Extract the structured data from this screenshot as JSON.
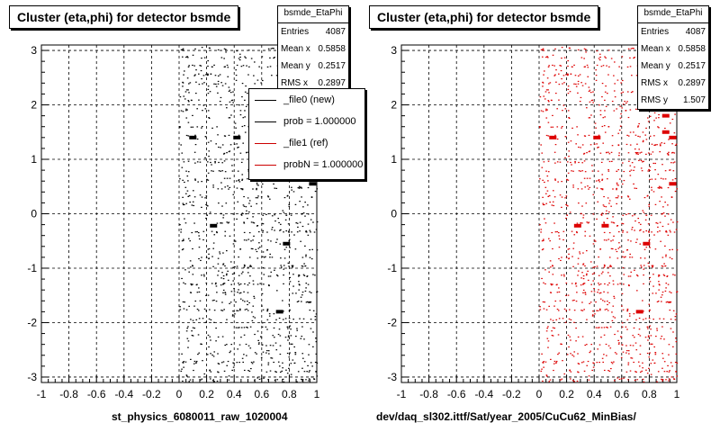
{
  "chart_data": [
    {
      "type": "scatter",
      "title": "Cluster (eta,phi) for detector bsmde",
      "xlabel": "st_physics_6080011_raw_1020004",
      "xlim": [
        -1,
        1
      ],
      "ylim": [
        -3.1,
        3.1
      ],
      "grid": true,
      "marker_color": "#000000",
      "xticks": [
        "-1",
        "-0.8",
        "-0.6",
        "-0.4",
        "-0.2",
        "0",
        "0.2",
        "0.4",
        "0.6",
        "0.8",
        "1"
      ],
      "yticks": [
        "3",
        "2",
        "1",
        "0",
        "-1",
        "-2",
        "-3"
      ],
      "stats": {
        "name": "bsmde_EtaPhi",
        "rows": [
          {
            "label": "Entries",
            "value": "4087"
          },
          {
            "label": "Mean x",
            "value": "0.5858"
          },
          {
            "label": "Mean y",
            "value": "0.2517"
          },
          {
            "label": "RMS x",
            "value": "0.2897"
          }
        ]
      },
      "legend": [
        {
          "label": "_file0 (new)",
          "color": "#000000"
        },
        {
          "label": "prob = 1.000000",
          "color": "#000000"
        },
        {
          "label": "_file1 (ref)",
          "color": "#cc0000"
        },
        {
          "label": "probN = 1.000000",
          "color": "#cc0000"
        }
      ],
      "hotspots": [
        {
          "x": 0.1,
          "y": 1.4
        },
        {
          "x": 0.42,
          "y": 1.4
        },
        {
          "x": 0.97,
          "y": 0.55
        },
        {
          "x": 0.25,
          "y": -0.22
        },
        {
          "x": 0.78,
          "y": -0.55
        },
        {
          "x": 0.73,
          "y": -1.8
        }
      ]
    },
    {
      "type": "scatter",
      "title": "Cluster (eta,phi) for detector bsmde",
      "xlabel": "dev/daq_sl302.ittf/Sat/year_2005/CuCu62_MinBias/",
      "xlim": [
        -1,
        1
      ],
      "ylim": [
        -3.1,
        3.1
      ],
      "grid": true,
      "marker_color": "#dd0000",
      "xticks": [
        "-1",
        "-0.8",
        "-0.6",
        "-0.4",
        "-0.2",
        "0",
        "0.2",
        "0.4",
        "0.6",
        "0.8",
        "1"
      ],
      "yticks": [
        "3",
        "2",
        "1",
        "0",
        "-1",
        "-2",
        "-3"
      ],
      "stats": {
        "name": "bsmde_EtaPhi",
        "rows": [
          {
            "label": "Entries",
            "value": "4087"
          },
          {
            "label": "Mean x",
            "value": "0.5858"
          },
          {
            "label": "Mean y",
            "value": "0.2517"
          },
          {
            "label": "RMS x",
            "value": "0.2897"
          },
          {
            "label": "RMS y",
            "value": "1.507"
          }
        ]
      },
      "hotspots": [
        {
          "x": 0.1,
          "y": 1.4
        },
        {
          "x": 0.42,
          "y": 1.4
        },
        {
          "x": 0.92,
          "y": 1.8
        },
        {
          "x": 0.92,
          "y": 1.5
        },
        {
          "x": 0.97,
          "y": 1.4
        },
        {
          "x": 0.97,
          "y": 0.55
        },
        {
          "x": 0.28,
          "y": -0.22
        },
        {
          "x": 0.48,
          "y": -0.22
        },
        {
          "x": 0.78,
          "y": -0.55
        },
        {
          "x": 0.73,
          "y": -1.8
        }
      ]
    }
  ]
}
